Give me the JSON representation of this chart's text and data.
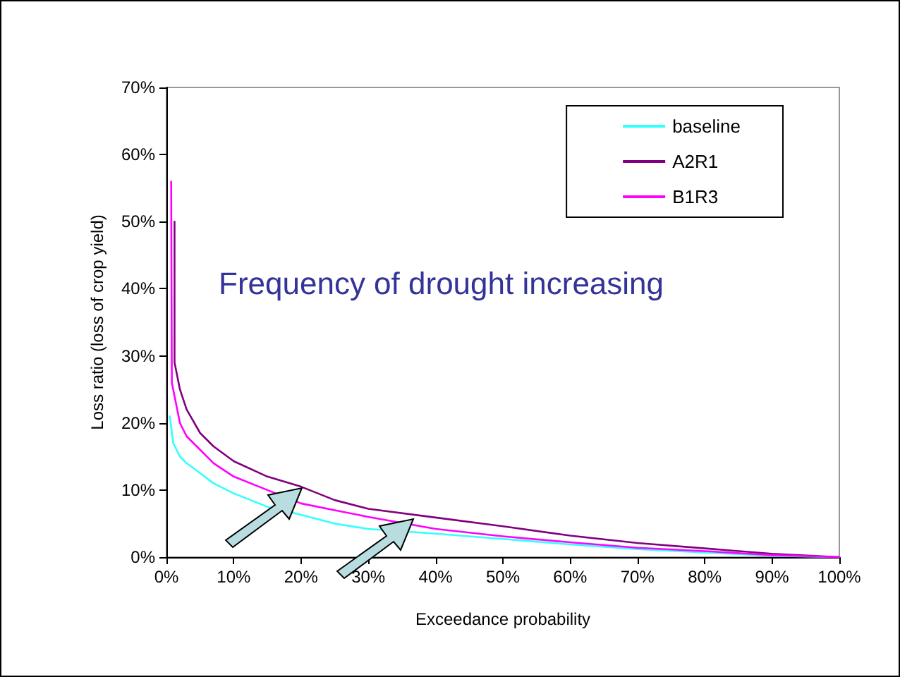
{
  "chart_data": {
    "type": "line",
    "xlabel": "Exceedance probability",
    "ylabel": "Loss ratio (loss of crop yield)",
    "annotations": [
      "Frequency of drought increasing"
    ],
    "series": [
      {
        "name": "baseline",
        "color": "#33ffff",
        "x": [
          0.5,
          1,
          2,
          3,
          5,
          7,
          10,
          15,
          20,
          25,
          30,
          40,
          50,
          60,
          70,
          80,
          90,
          100
        ],
        "values": [
          21,
          17,
          15,
          14,
          12.5,
          11,
          9.5,
          7.5,
          6.3,
          5,
          4.2,
          3.5,
          2.7,
          1.9,
          1.2,
          0.7,
          0.2,
          0
        ]
      },
      {
        "name": "A2R1",
        "color": "#800080",
        "x": [
          1.2,
          1.2,
          2,
          3,
          5,
          7,
          10,
          15,
          20,
          25,
          30,
          40,
          50,
          60,
          70,
          80,
          90,
          100
        ],
        "values": [
          50,
          29,
          25,
          22,
          18.5,
          16.5,
          14.3,
          12,
          10.5,
          8.5,
          7.2,
          5.9,
          4.6,
          3.2,
          2.1,
          1.3,
          0.5,
          0
        ]
      },
      {
        "name": "B1R3",
        "color": "#ff00ff",
        "x": [
          0.7,
          0.8,
          1,
          2,
          3,
          5,
          7,
          10,
          15,
          20,
          25,
          30,
          40,
          50,
          60,
          70,
          80,
          90,
          100
        ],
        "values": [
          56,
          26,
          25,
          20,
          18,
          16,
          14,
          12,
          10,
          8,
          7,
          6,
          4.2,
          3.1,
          2.2,
          1.4,
          0.9,
          0.3,
          0
        ]
      }
    ],
    "xlim": [
      0,
      100
    ],
    "ylim": [
      0,
      70
    ],
    "xticks": [
      {
        "value": 0,
        "label": "0%"
      },
      {
        "value": 10,
        "label": "10%"
      },
      {
        "value": 20,
        "label": "20%"
      },
      {
        "value": 30,
        "label": "30%"
      },
      {
        "value": 40,
        "label": "40%"
      },
      {
        "value": 50,
        "label": "50%"
      },
      {
        "value": 60,
        "label": "60%"
      },
      {
        "value": 70,
        "label": "70%"
      },
      {
        "value": 80,
        "label": "80%"
      },
      {
        "value": 90,
        "label": "90%"
      },
      {
        "value": 100,
        "label": "100%"
      }
    ],
    "yticks": [
      {
        "value": 0,
        "label": "0%"
      },
      {
        "value": 10,
        "label": "10%"
      },
      {
        "value": 20,
        "label": "20%"
      },
      {
        "value": 30,
        "label": "30%"
      },
      {
        "value": 40,
        "label": "40%"
      },
      {
        "value": 50,
        "label": "50%"
      },
      {
        "value": 60,
        "label": "60%"
      },
      {
        "value": 70,
        "label": "70%"
      }
    ],
    "grid": false,
    "legend": "top right",
    "marker": "none",
    "line_style": "solid"
  }
}
